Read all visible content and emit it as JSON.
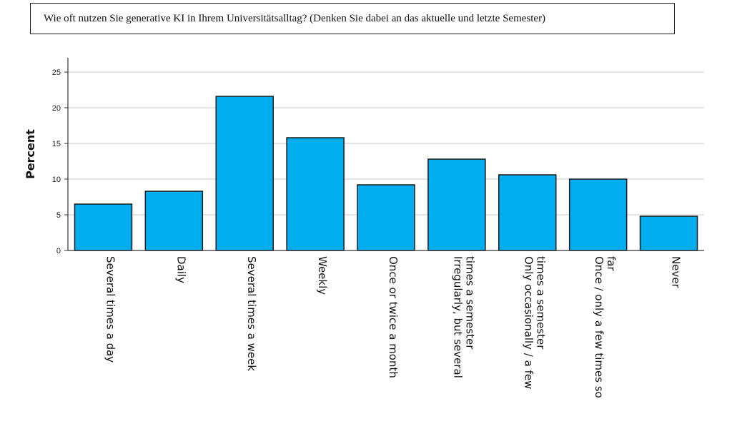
{
  "question": "Wie oft nutzen Sie generative KI in Ihrem Universitätsalltag? (Denken Sie dabei an das aktuelle und letzte Semester)",
  "chart_data": {
    "type": "bar",
    "categories": [
      [
        "Several times a day"
      ],
      [
        "Daily"
      ],
      [
        "Several times a week"
      ],
      [
        "Weekly"
      ],
      [
        "Once or twice a month"
      ],
      [
        "Irregularly, but several",
        "times a semester"
      ],
      [
        "Only occasionally / a few",
        "times a semester"
      ],
      [
        "Once / only a few times so",
        "far"
      ],
      [
        "Never"
      ]
    ],
    "values": [
      6.5,
      8.3,
      21.6,
      15.8,
      9.2,
      12.8,
      10.6,
      10.0,
      4.8
    ],
    "ylabel": "Percent",
    "xlabel": "",
    "ylim": [
      0,
      27
    ],
    "yticks": [
      0,
      5,
      10,
      15,
      20,
      25
    ],
    "grid": true,
    "bar_color": "#00aeef",
    "bar_stroke": "#1a1a1a"
  }
}
